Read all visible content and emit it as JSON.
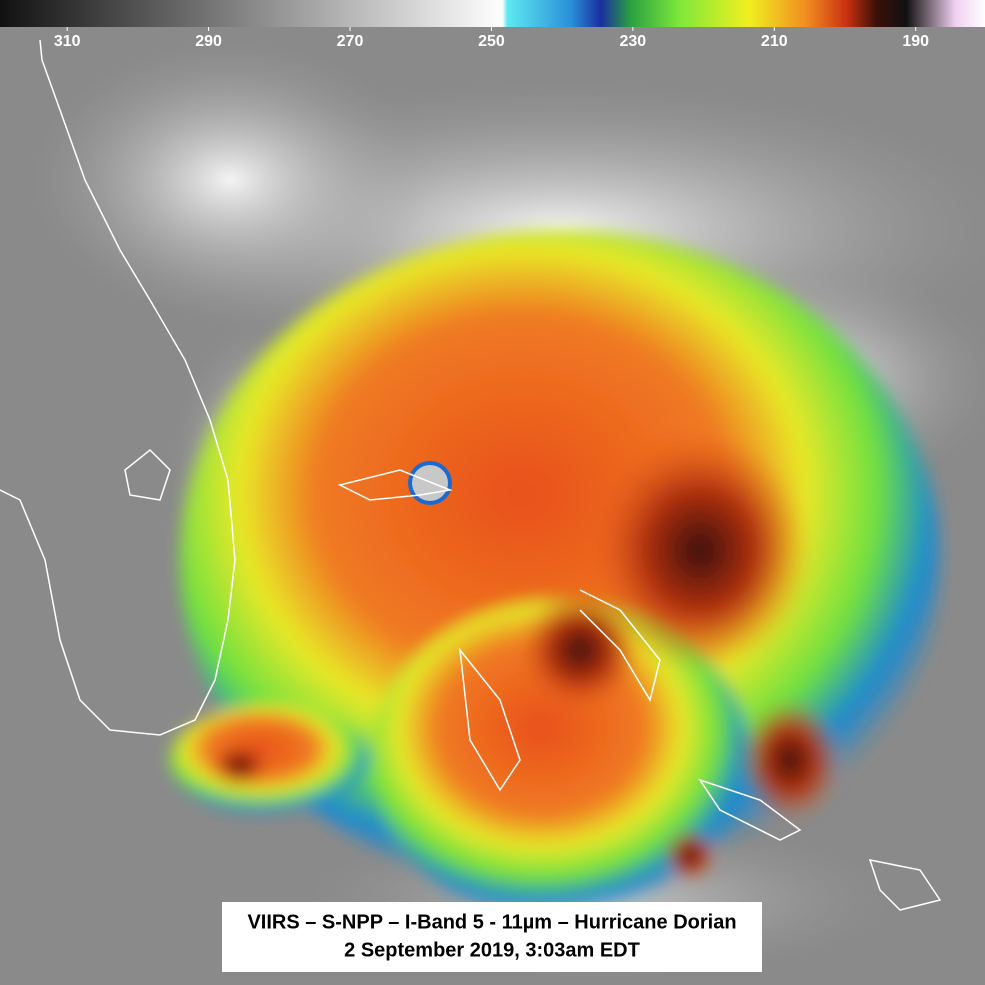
{
  "colorbar": {
    "xlim": [
      319.5,
      180.2
    ],
    "ticks": [
      310,
      290,
      270,
      250,
      230,
      210,
      190
    ]
  },
  "caption": {
    "line1": "VIIRS – S-NPP – I-Band 5 - 11µm – Hurricane Dorian",
    "line2": "2 September 2019, 3:03am EDT"
  }
}
